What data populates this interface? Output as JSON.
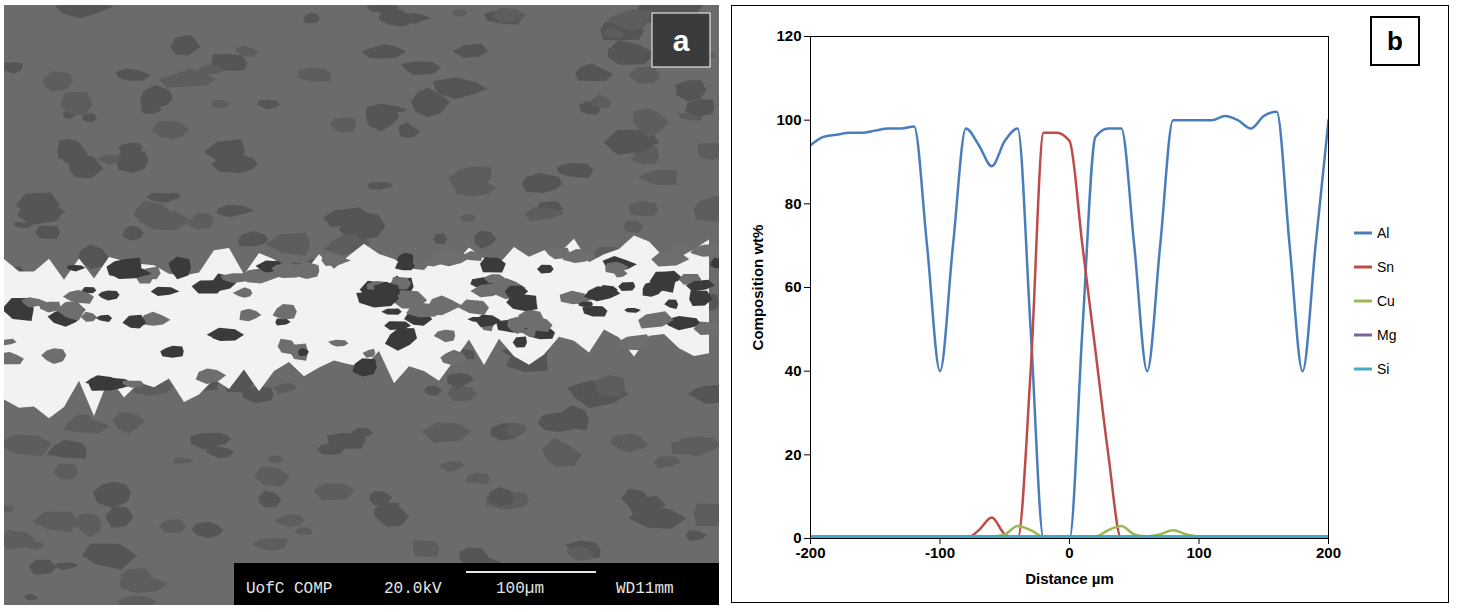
{
  "chart_data": {
    "type": "line",
    "panel": "b",
    "xlabel": "Distance µm",
    "ylabel": "Composition wt%",
    "x": [
      -200,
      -190,
      -180,
      -170,
      -160,
      -150,
      -140,
      -130,
      -120,
      -110,
      -100,
      -90,
      -80,
      -70,
      -60,
      -50,
      -40,
      -30,
      -20,
      -10,
      0,
      10,
      20,
      30,
      40,
      50,
      60,
      70,
      80,
      90,
      100,
      110,
      120,
      130,
      140,
      150,
      160,
      170,
      180,
      190,
      200
    ],
    "series": [
      {
        "name": "Al",
        "color": "#4a7ebb",
        "values": [
          94,
          96,
          96.5,
          97,
          97,
          97.5,
          98,
          98,
          98.5,
          70,
          40,
          70,
          98,
          94,
          89,
          95,
          98,
          50,
          0,
          0,
          0,
          50,
          96,
          98,
          98,
          70,
          40,
          70,
          100,
          100,
          100,
          100,
          101,
          100,
          98,
          101,
          102,
          70,
          40,
          70,
          100
        ]
      },
      {
        "name": "Sn",
        "color": "#be4b48",
        "values": [
          0,
          0,
          0,
          0,
          0,
          0,
          0,
          0,
          0,
          0,
          0,
          0,
          0,
          2,
          5,
          1,
          0,
          40,
          97,
          97,
          95,
          70,
          45,
          20,
          0,
          0,
          0,
          0,
          0,
          0,
          0,
          0,
          0,
          0,
          0,
          0,
          0,
          0,
          0,
          0,
          0
        ]
      },
      {
        "name": "Cu",
        "color": "#98b954",
        "values": [
          0.5,
          0.5,
          0.5,
          0.5,
          0.5,
          0.5,
          0.5,
          0.5,
          0.5,
          0.5,
          0.5,
          0.5,
          0.5,
          0.5,
          0.5,
          1,
          3,
          2,
          0.5,
          0.5,
          0.5,
          0.5,
          0.5,
          2,
          3,
          1,
          0.5,
          1,
          2,
          1,
          0.5,
          0.5,
          0.5,
          0.5,
          0.5,
          0.5,
          0.5,
          0.5,
          0.5,
          0.5,
          0.5
        ]
      },
      {
        "name": "Mg",
        "color": "#7d60a0",
        "values": [
          0.5,
          0.5,
          0.5,
          0.5,
          0.5,
          0.5,
          0.5,
          0.5,
          0.5,
          0.5,
          0.5,
          0.5,
          0.5,
          0.5,
          0.5,
          0.5,
          0.5,
          0.5,
          0.5,
          0.5,
          0.5,
          0.5,
          0.5,
          0.5,
          0.5,
          0.5,
          0.5,
          0.5,
          0.5,
          0.5,
          0.5,
          0.5,
          0.5,
          0.5,
          0.5,
          0.5,
          0.5,
          0.5,
          0.5,
          0.5,
          0.5
        ]
      },
      {
        "name": "Si",
        "color": "#46aac5",
        "values": [
          0.5,
          0.5,
          0.5,
          0.5,
          0.5,
          0.5,
          0.5,
          0.5,
          0.5,
          0.5,
          0.5,
          0.5,
          0.5,
          0.5,
          0.5,
          0.5,
          0.5,
          0.5,
          0.5,
          0.5,
          0.5,
          0.5,
          0.5,
          0.5,
          0.5,
          0.5,
          0.5,
          0.5,
          0.5,
          0.5,
          0.5,
          0.5,
          0.5,
          0.5,
          0.5,
          0.5,
          0.5,
          0.5,
          0.5,
          0.5,
          0.5
        ]
      }
    ],
    "xlim": [
      -200,
      200
    ],
    "xticks": [
      -200,
      -100,
      0,
      100,
      200
    ],
    "ylim": [
      0,
      120
    ],
    "yticks": [
      0,
      20,
      40,
      60,
      80,
      100,
      120
    ],
    "grid": false,
    "legend": "right"
  },
  "micrograph": {
    "panel": "a",
    "footer": [
      "UofC COMP",
      "20.0kV",
      "100µm",
      "WD11mm"
    ]
  }
}
